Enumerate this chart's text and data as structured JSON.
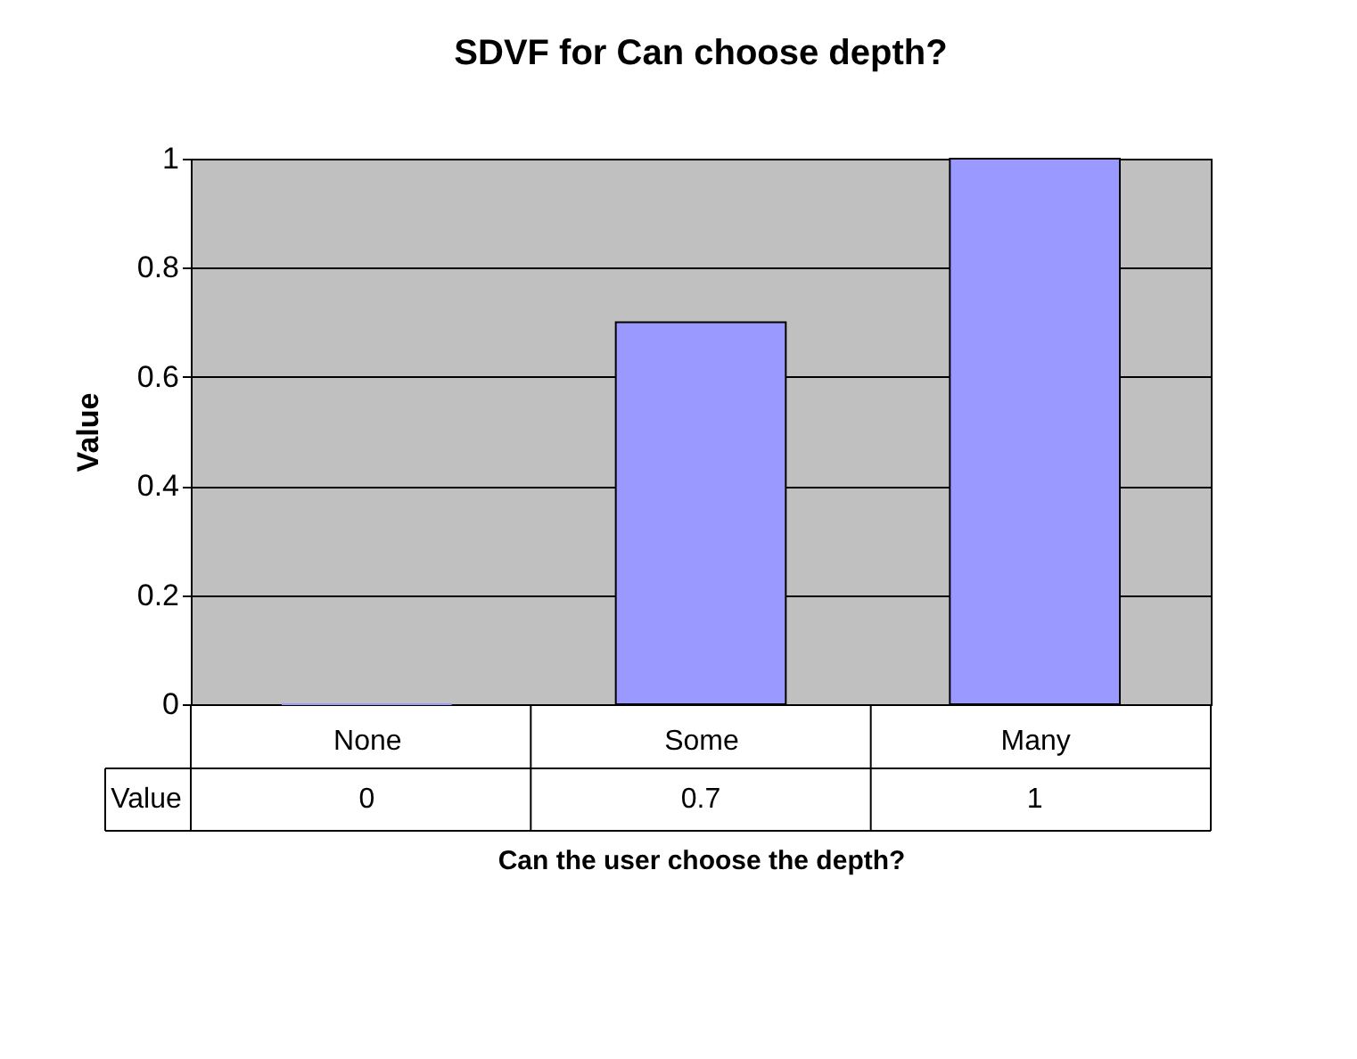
{
  "chart_data": {
    "type": "bar",
    "title": "SDVF for Can choose depth?",
    "xlabel": "Can the user choose the depth?",
    "ylabel": "Value",
    "categories": [
      "None",
      "Some",
      "Many"
    ],
    "series": [
      {
        "name": "Value",
        "color": "#9999ff",
        "values": [
          0,
          0.7,
          1
        ]
      }
    ],
    "ylim": [
      0,
      1
    ],
    "yticks": [
      0,
      0.2,
      0.4,
      0.6,
      0.8,
      1
    ],
    "grid": "y",
    "data_labels": true
  }
}
